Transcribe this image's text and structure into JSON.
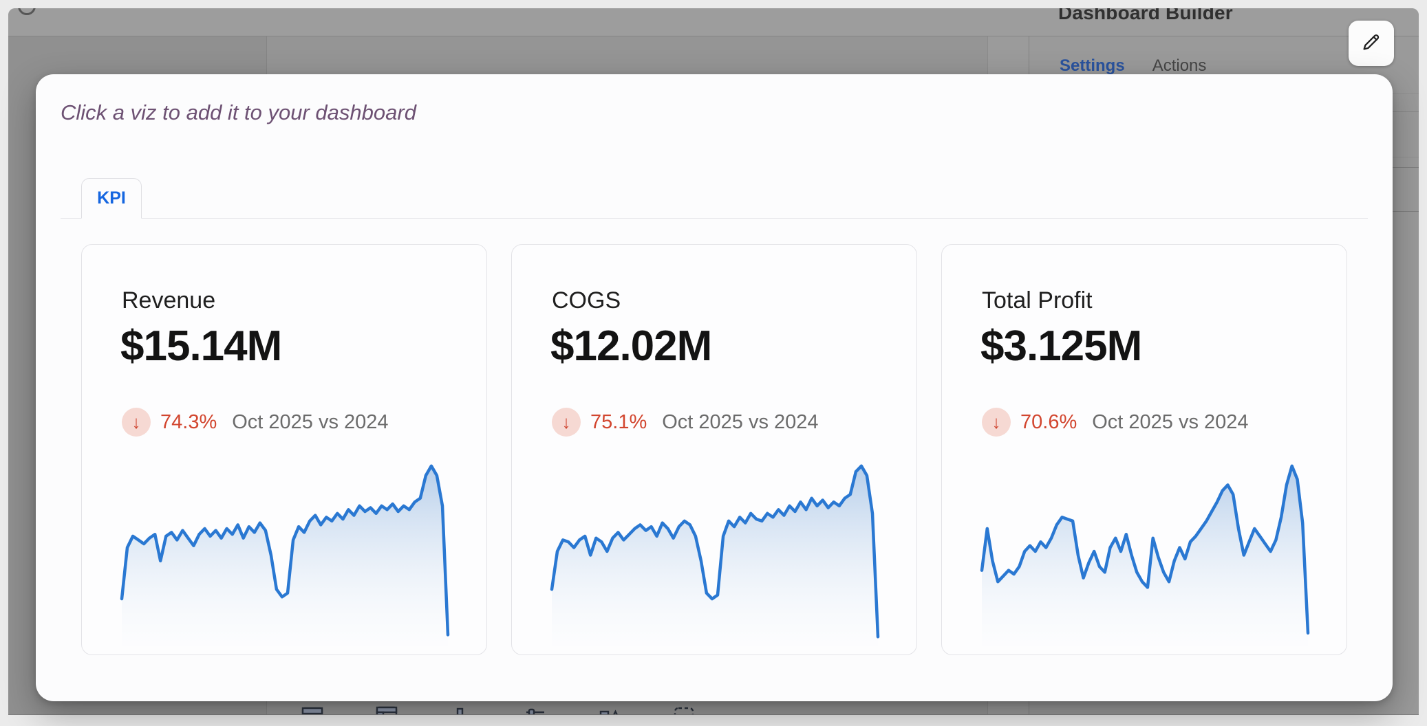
{
  "app": {
    "panel": {
      "title": "Dashboard Builder",
      "tabs": [
        {
          "label": "Settings",
          "active": true
        },
        {
          "label": "Actions",
          "active": false
        }
      ],
      "edit_button_icon": "pencil-icon"
    },
    "toolbar_icons": [
      "table-icon",
      "pivot-table-icon",
      "bar-chart-icon",
      "slider-icon",
      "shapes-icon",
      "container-icon"
    ]
  },
  "modal": {
    "heading": "Click a viz to add it to your dashboard",
    "tab_label": "KPI",
    "arrow_down_glyph": "↓"
  },
  "colors": {
    "accent_blue": "#1566e0",
    "spark_blue": "#2a78d2",
    "negative_red": "#d2462f",
    "badge_pink": "#f6d9d3",
    "heading_purple": "#6d5173"
  },
  "chart_data": [
    {
      "type": "area",
      "title": "Revenue",
      "value": "$15.14M",
      "change_pct": "74.3%",
      "change_direction": "down",
      "period": "Oct 2025 vs 2024",
      "axes": "none (sparkline)",
      "y_note": "values normalized 0-100 from pixel heights",
      "values": [
        25,
        52,
        58,
        56,
        54,
        57,
        59,
        45,
        58,
        60,
        56,
        61,
        57,
        53,
        59,
        62,
        58,
        61,
        57,
        62,
        59,
        64,
        57,
        63,
        60,
        65,
        61,
        48,
        30,
        26,
        28,
        56,
        63,
        60,
        66,
        69,
        64,
        68,
        66,
        70,
        67,
        72,
        69,
        74,
        71,
        73,
        70,
        74,
        72,
        75,
        71,
        74,
        72,
        76,
        78,
        90,
        95,
        90,
        74,
        6
      ]
    },
    {
      "type": "area",
      "title": "COGS",
      "value": "$12.02M",
      "change_pct": "75.1%",
      "change_direction": "down",
      "period": "Oct 2025 vs 2024",
      "axes": "none (sparkline)",
      "y_note": "values normalized 0-100 from pixel heights",
      "values": [
        30,
        50,
        56,
        55,
        52,
        56,
        58,
        48,
        57,
        55,
        50,
        57,
        60,
        56,
        59,
        62,
        64,
        61,
        63,
        58,
        65,
        62,
        57,
        63,
        66,
        64,
        58,
        45,
        28,
        25,
        27,
        58,
        66,
        63,
        68,
        65,
        70,
        67,
        66,
        70,
        68,
        72,
        69,
        74,
        71,
        76,
        72,
        78,
        74,
        77,
        73,
        76,
        74,
        78,
        80,
        92,
        95,
        90,
        70,
        5
      ]
    },
    {
      "type": "area",
      "title": "Total Profit",
      "value": "$3.125M",
      "change_pct": "70.6%",
      "change_direction": "down",
      "period": "Oct 2025 vs 2024",
      "axes": "none (sparkline)",
      "y_note": "values normalized 0-100 from pixel heights",
      "values": [
        40,
        62,
        45,
        34,
        37,
        40,
        38,
        42,
        50,
        53,
        50,
        55,
        52,
        57,
        64,
        68,
        67,
        66,
        48,
        36,
        44,
        50,
        42,
        39,
        52,
        57,
        50,
        59,
        48,
        39,
        34,
        31,
        57,
        47,
        39,
        34,
        45,
        52,
        46,
        55,
        58,
        62,
        66,
        71,
        76,
        82,
        85,
        80,
        62,
        48,
        55,
        62,
        58,
        54,
        50,
        56,
        68,
        85,
        95,
        88,
        65,
        7
      ]
    }
  ]
}
